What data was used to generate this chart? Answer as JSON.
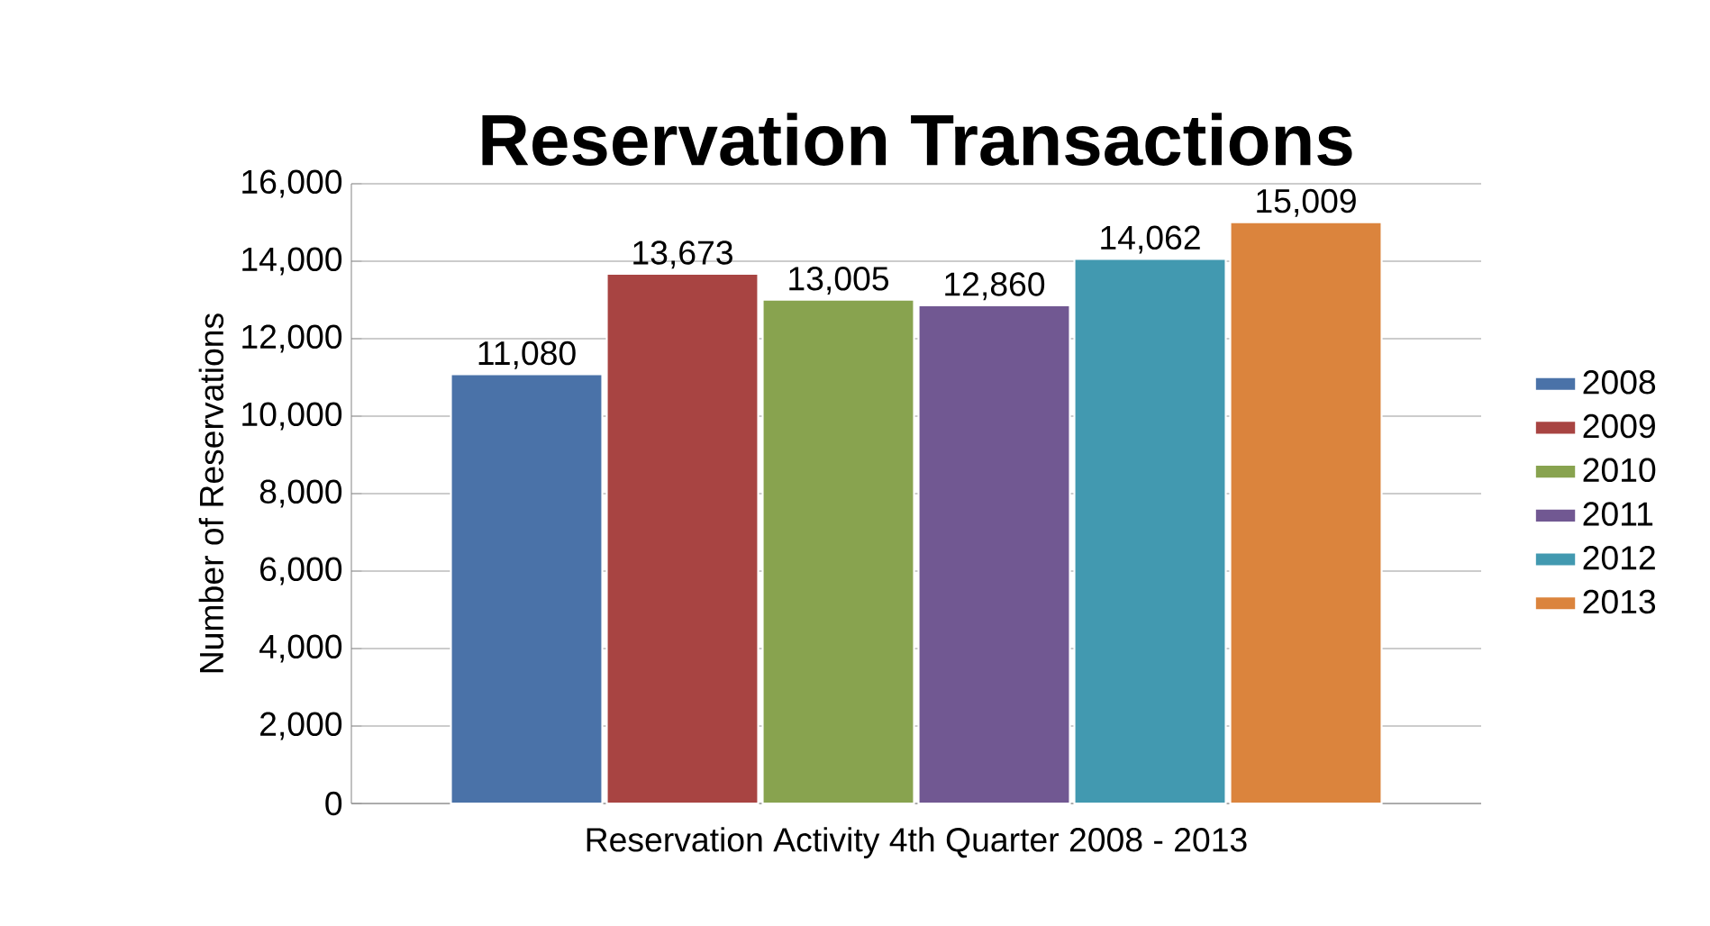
{
  "chart_data": {
    "type": "bar",
    "title": "Reservation Transactions",
    "xlabel": "Reservation Activity 4th Quarter 2008 - 2013",
    "ylabel": "Number of Reservations",
    "categories": [
      null
    ],
    "series": [
      {
        "name": "2008",
        "color": "#4a72a8",
        "values": [
          11080
        ],
        "value_labels": [
          "11,080"
        ]
      },
      {
        "name": "2009",
        "color": "#a84442",
        "values": [
          13673
        ],
        "value_labels": [
          "13,673"
        ]
      },
      {
        "name": "2010",
        "color": "#88a34f",
        "values": [
          13005
        ],
        "value_labels": [
          "13,005"
        ]
      },
      {
        "name": "2011",
        "color": "#715892",
        "values": [
          12860
        ],
        "value_labels": [
          "12,860"
        ]
      },
      {
        "name": "2012",
        "color": "#4299b0",
        "values": [
          14062
        ],
        "value_labels": [
          "14,062"
        ]
      },
      {
        "name": "2013",
        "color": "#db843d",
        "values": [
          15009
        ],
        "value_labels": [
          "15,009"
        ]
      }
    ],
    "ylim": [
      0,
      16000
    ],
    "yticks": [
      {
        "value": 0,
        "label": "0"
      },
      {
        "value": 2000,
        "label": "2,000"
      },
      {
        "value": 4000,
        "label": "4,000"
      },
      {
        "value": 6000,
        "label": "6,000"
      },
      {
        "value": 8000,
        "label": "8,000"
      },
      {
        "value": 10000,
        "label": "10,000"
      },
      {
        "value": 12000,
        "label": "12,000"
      },
      {
        "value": 14000,
        "label": "14,000"
      },
      {
        "value": 16000,
        "label": "16,000"
      }
    ],
    "grid": "y",
    "legend": "right"
  }
}
